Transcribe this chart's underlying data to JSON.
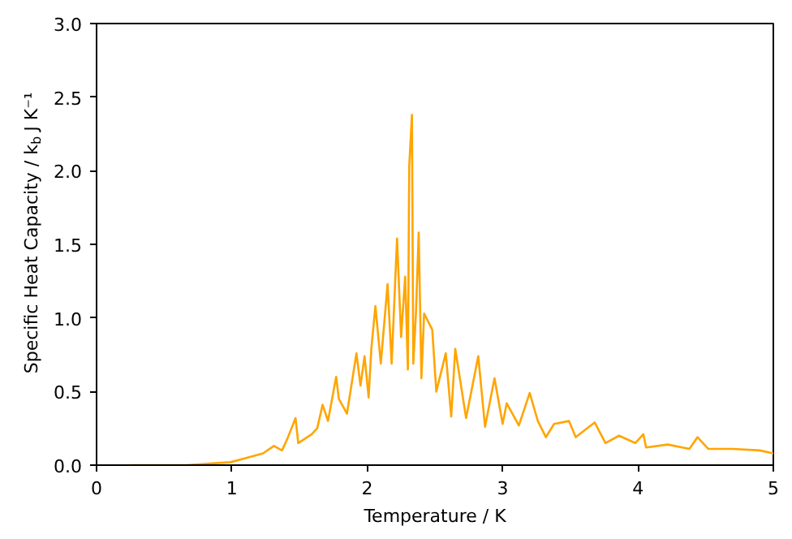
{
  "chart_data": {
    "type": "line",
    "xlabel": "Temperature / K",
    "ylabel": "Specific Heat Capacity / k$_{b}$ J K⁻¹",
    "xlim": [
      0,
      5
    ],
    "ylim": [
      0,
      3.0
    ],
    "xticks": [
      0,
      1,
      2,
      3,
      4,
      5
    ],
    "yticks": [
      {
        "value": 0,
        "label": "0.0"
      },
      0.5,
      {
        "value": 1,
        "label": "1.0"
      },
      1.5,
      {
        "value": 2,
        "label": "2.0"
      },
      2.5,
      {
        "value": 3,
        "label": "3.0"
      }
    ],
    "grid": false,
    "marker": "none",
    "line_style": "solid",
    "series": [
      {
        "color": "#ffa500",
        "x": [
          0.25,
          0.67,
          0.99,
          1.11,
          1.23,
          1.31,
          1.37,
          1.41,
          1.47,
          1.49,
          1.59,
          1.63,
          1.67,
          1.71,
          1.77,
          1.79,
          1.85,
          1.92,
          1.95,
          1.98,
          2.01,
          2.03,
          2.06,
          2.1,
          2.15,
          2.18,
          2.22,
          2.25,
          2.28,
          2.3,
          2.31,
          2.33,
          2.34,
          2.36,
          2.38,
          2.4,
          2.42,
          2.48,
          2.51,
          2.58,
          2.62,
          2.65,
          2.73,
          2.82,
          2.87,
          2.94,
          3.0,
          3.03,
          3.12,
          3.2,
          3.26,
          3.32,
          3.38,
          3.49,
          3.54,
          3.68,
          3.76,
          3.86,
          3.98,
          4.04,
          4.06,
          4.22,
          4.38,
          4.44,
          4.52,
          4.7,
          4.9,
          5.0
        ],
        "values": [
          0,
          0,
          0.02,
          0.05,
          0.08,
          0.13,
          0.1,
          0.18,
          0.32,
          0.15,
          0.21,
          0.25,
          0.41,
          0.3,
          0.6,
          0.45,
          0.35,
          0.76,
          0.54,
          0.74,
          0.46,
          0.79,
          1.08,
          0.69,
          1.23,
          0.69,
          1.54,
          0.87,
          1.28,
          0.65,
          2.03,
          2.38,
          0.69,
          1.04,
          1.58,
          0.59,
          1.03,
          0.92,
          0.5,
          0.76,
          0.33,
          0.79,
          0.32,
          0.74,
          0.26,
          0.59,
          0.28,
          0.42,
          0.27,
          0.49,
          0.3,
          0.19,
          0.28,
          0.3,
          0.19,
          0.29,
          0.15,
          0.2,
          0.15,
          0.21,
          0.12,
          0.14,
          0.11,
          0.19,
          0.11,
          0.11,
          0.1,
          0.08
        ]
      }
    ]
  }
}
